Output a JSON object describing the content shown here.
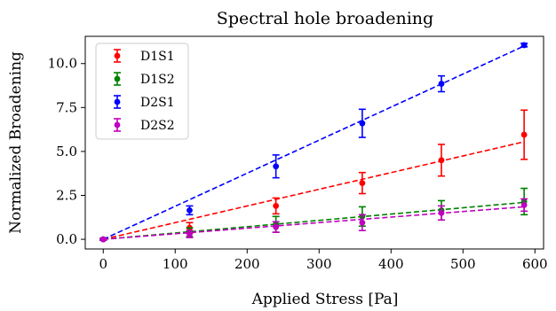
{
  "chart_data": {
    "type": "scatter",
    "title": "Spectral hole broadening",
    "xlabel": "Applied Stress [Pa]",
    "ylabel": "Normalized Broadening",
    "xlim": [
      -25,
      612
    ],
    "ylim": [
      -0.55,
      11.55
    ],
    "xticks": [
      0,
      100,
      200,
      300,
      400,
      500,
      600
    ],
    "yticks": [
      0.0,
      2.5,
      5.0,
      7.5,
      10.0
    ],
    "xtick_labels": [
      "0",
      "100",
      "200",
      "300",
      "400",
      "500",
      "600"
    ],
    "ytick_labels": [
      "0.0",
      "2.5",
      "5.0",
      "7.5",
      "10.0"
    ],
    "grid": false,
    "legend_position": "top-left",
    "series": [
      {
        "name": "D1S1",
        "color": "#ff0000",
        "x": [
          0,
          120,
          240,
          360,
          470,
          585
        ],
        "y": [
          0.0,
          0.65,
          1.9,
          3.2,
          4.5,
          5.95
        ],
        "yerr": [
          0.05,
          0.3,
          0.45,
          0.6,
          0.9,
          1.4
        ],
        "fit": [
          [
            0,
            0.0
          ],
          [
            585,
            5.55
          ]
        ]
      },
      {
        "name": "D1S2",
        "color": "#008000",
        "x": [
          0,
          120,
          240,
          360,
          470,
          585
        ],
        "y": [
          0.0,
          0.4,
          0.85,
          1.3,
          1.65,
          2.15
        ],
        "yerr": [
          0.05,
          0.25,
          0.45,
          0.55,
          0.55,
          0.75
        ],
        "fit": [
          [
            0,
            0.0
          ],
          [
            585,
            2.1
          ]
        ]
      },
      {
        "name": "D2S1",
        "color": "#0000ff",
        "x": [
          0,
          120,
          240,
          360,
          470,
          585
        ],
        "y": [
          0.0,
          1.65,
          4.15,
          6.6,
          8.85,
          11.05
        ],
        "yerr": [
          0.05,
          0.25,
          0.65,
          0.8,
          0.45,
          0.1
        ],
        "fit": [
          [
            0,
            0.0
          ],
          [
            585,
            11.0
          ]
        ]
      },
      {
        "name": "D2S2",
        "color": "#bf00bf",
        "x": [
          0,
          120,
          240,
          360,
          470,
          585
        ],
        "y": [
          0.0,
          0.3,
          0.7,
          0.95,
          1.5,
          1.95
        ],
        "yerr": [
          0.05,
          0.2,
          0.3,
          0.45,
          0.4,
          0.35
        ],
        "fit": [
          [
            0,
            0.0
          ],
          [
            585,
            1.85
          ]
        ]
      }
    ]
  }
}
